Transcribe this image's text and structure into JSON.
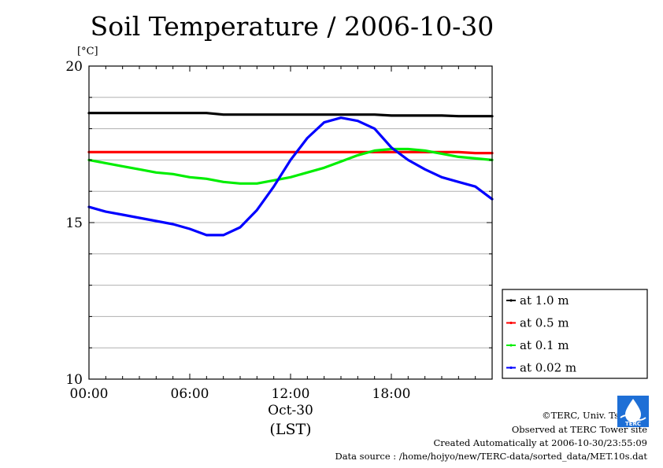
{
  "title": "Soil Temperature / 2006-10-30",
  "chart_data": {
    "type": "line",
    "title": "Soil Temperature / 2006-10-30",
    "ylabel": "[°C]",
    "xlabel": "(LST)",
    "x_date_label": "Oct-30",
    "xlim_hours": [
      0,
      24
    ],
    "ylim": [
      10,
      20
    ],
    "x_ticks": [
      {
        "value": 0,
        "label": "00:00"
      },
      {
        "value": 6,
        "label": "06:00"
      },
      {
        "value": 12,
        "label": "12:00"
      },
      {
        "value": 18,
        "label": "18:00"
      }
    ],
    "y_ticks": [
      {
        "value": 10,
        "label": "10"
      },
      {
        "value": 15,
        "label": "15"
      },
      {
        "value": 20,
        "label": "20"
      }
    ],
    "grid": true,
    "legend_position": "bottom-right",
    "x_hours": [
      0,
      1,
      2,
      3,
      4,
      5,
      6,
      7,
      8,
      9,
      10,
      11,
      12,
      13,
      14,
      15,
      16,
      17,
      18,
      19,
      20,
      21,
      22,
      23,
      24
    ],
    "series": [
      {
        "name": "at 1.0 m",
        "color": "#000000",
        "values": [
          18.5,
          18.5,
          18.5,
          18.5,
          18.5,
          18.5,
          18.5,
          18.5,
          18.45,
          18.45,
          18.45,
          18.45,
          18.45,
          18.45,
          18.45,
          18.45,
          18.45,
          18.45,
          18.42,
          18.42,
          18.42,
          18.42,
          18.4,
          18.4,
          18.4
        ]
      },
      {
        "name": "at 0.5 m",
        "color": "#ff0000",
        "values": [
          17.25,
          17.25,
          17.25,
          17.25,
          17.25,
          17.25,
          17.25,
          17.25,
          17.25,
          17.25,
          17.25,
          17.25,
          17.25,
          17.25,
          17.25,
          17.25,
          17.25,
          17.25,
          17.25,
          17.25,
          17.25,
          17.25,
          17.25,
          17.22,
          17.22
        ]
      },
      {
        "name": "at 0.1 m",
        "color": "#00ee00",
        "values": [
          17.0,
          16.9,
          16.8,
          16.7,
          16.6,
          16.55,
          16.45,
          16.4,
          16.3,
          16.25,
          16.25,
          16.35,
          16.45,
          16.6,
          16.75,
          16.95,
          17.15,
          17.3,
          17.35,
          17.35,
          17.3,
          17.2,
          17.1,
          17.05,
          17.0
        ]
      },
      {
        "name": "at 0.02 m",
        "color": "#0000ff",
        "values": [
          15.5,
          15.35,
          15.25,
          15.15,
          15.05,
          14.95,
          14.8,
          14.6,
          14.6,
          14.85,
          15.4,
          16.15,
          17.0,
          17.7,
          18.2,
          18.35,
          18.25,
          18.0,
          17.4,
          17.0,
          16.7,
          16.45,
          16.3,
          16.15,
          15.75
        ]
      }
    ]
  },
  "footer": {
    "copyright": "©TERC, Univ. Tsukuba",
    "site": "Observed at TERC Tower site",
    "created": "Created Automatically at 2006-10-30/23:55:09",
    "source": "Data source : /home/hojyo/new/TERC-data/sorted_data/MET.10s.dat"
  },
  "logo": {
    "text": "TERC",
    "color": "#1e6fd6"
  }
}
